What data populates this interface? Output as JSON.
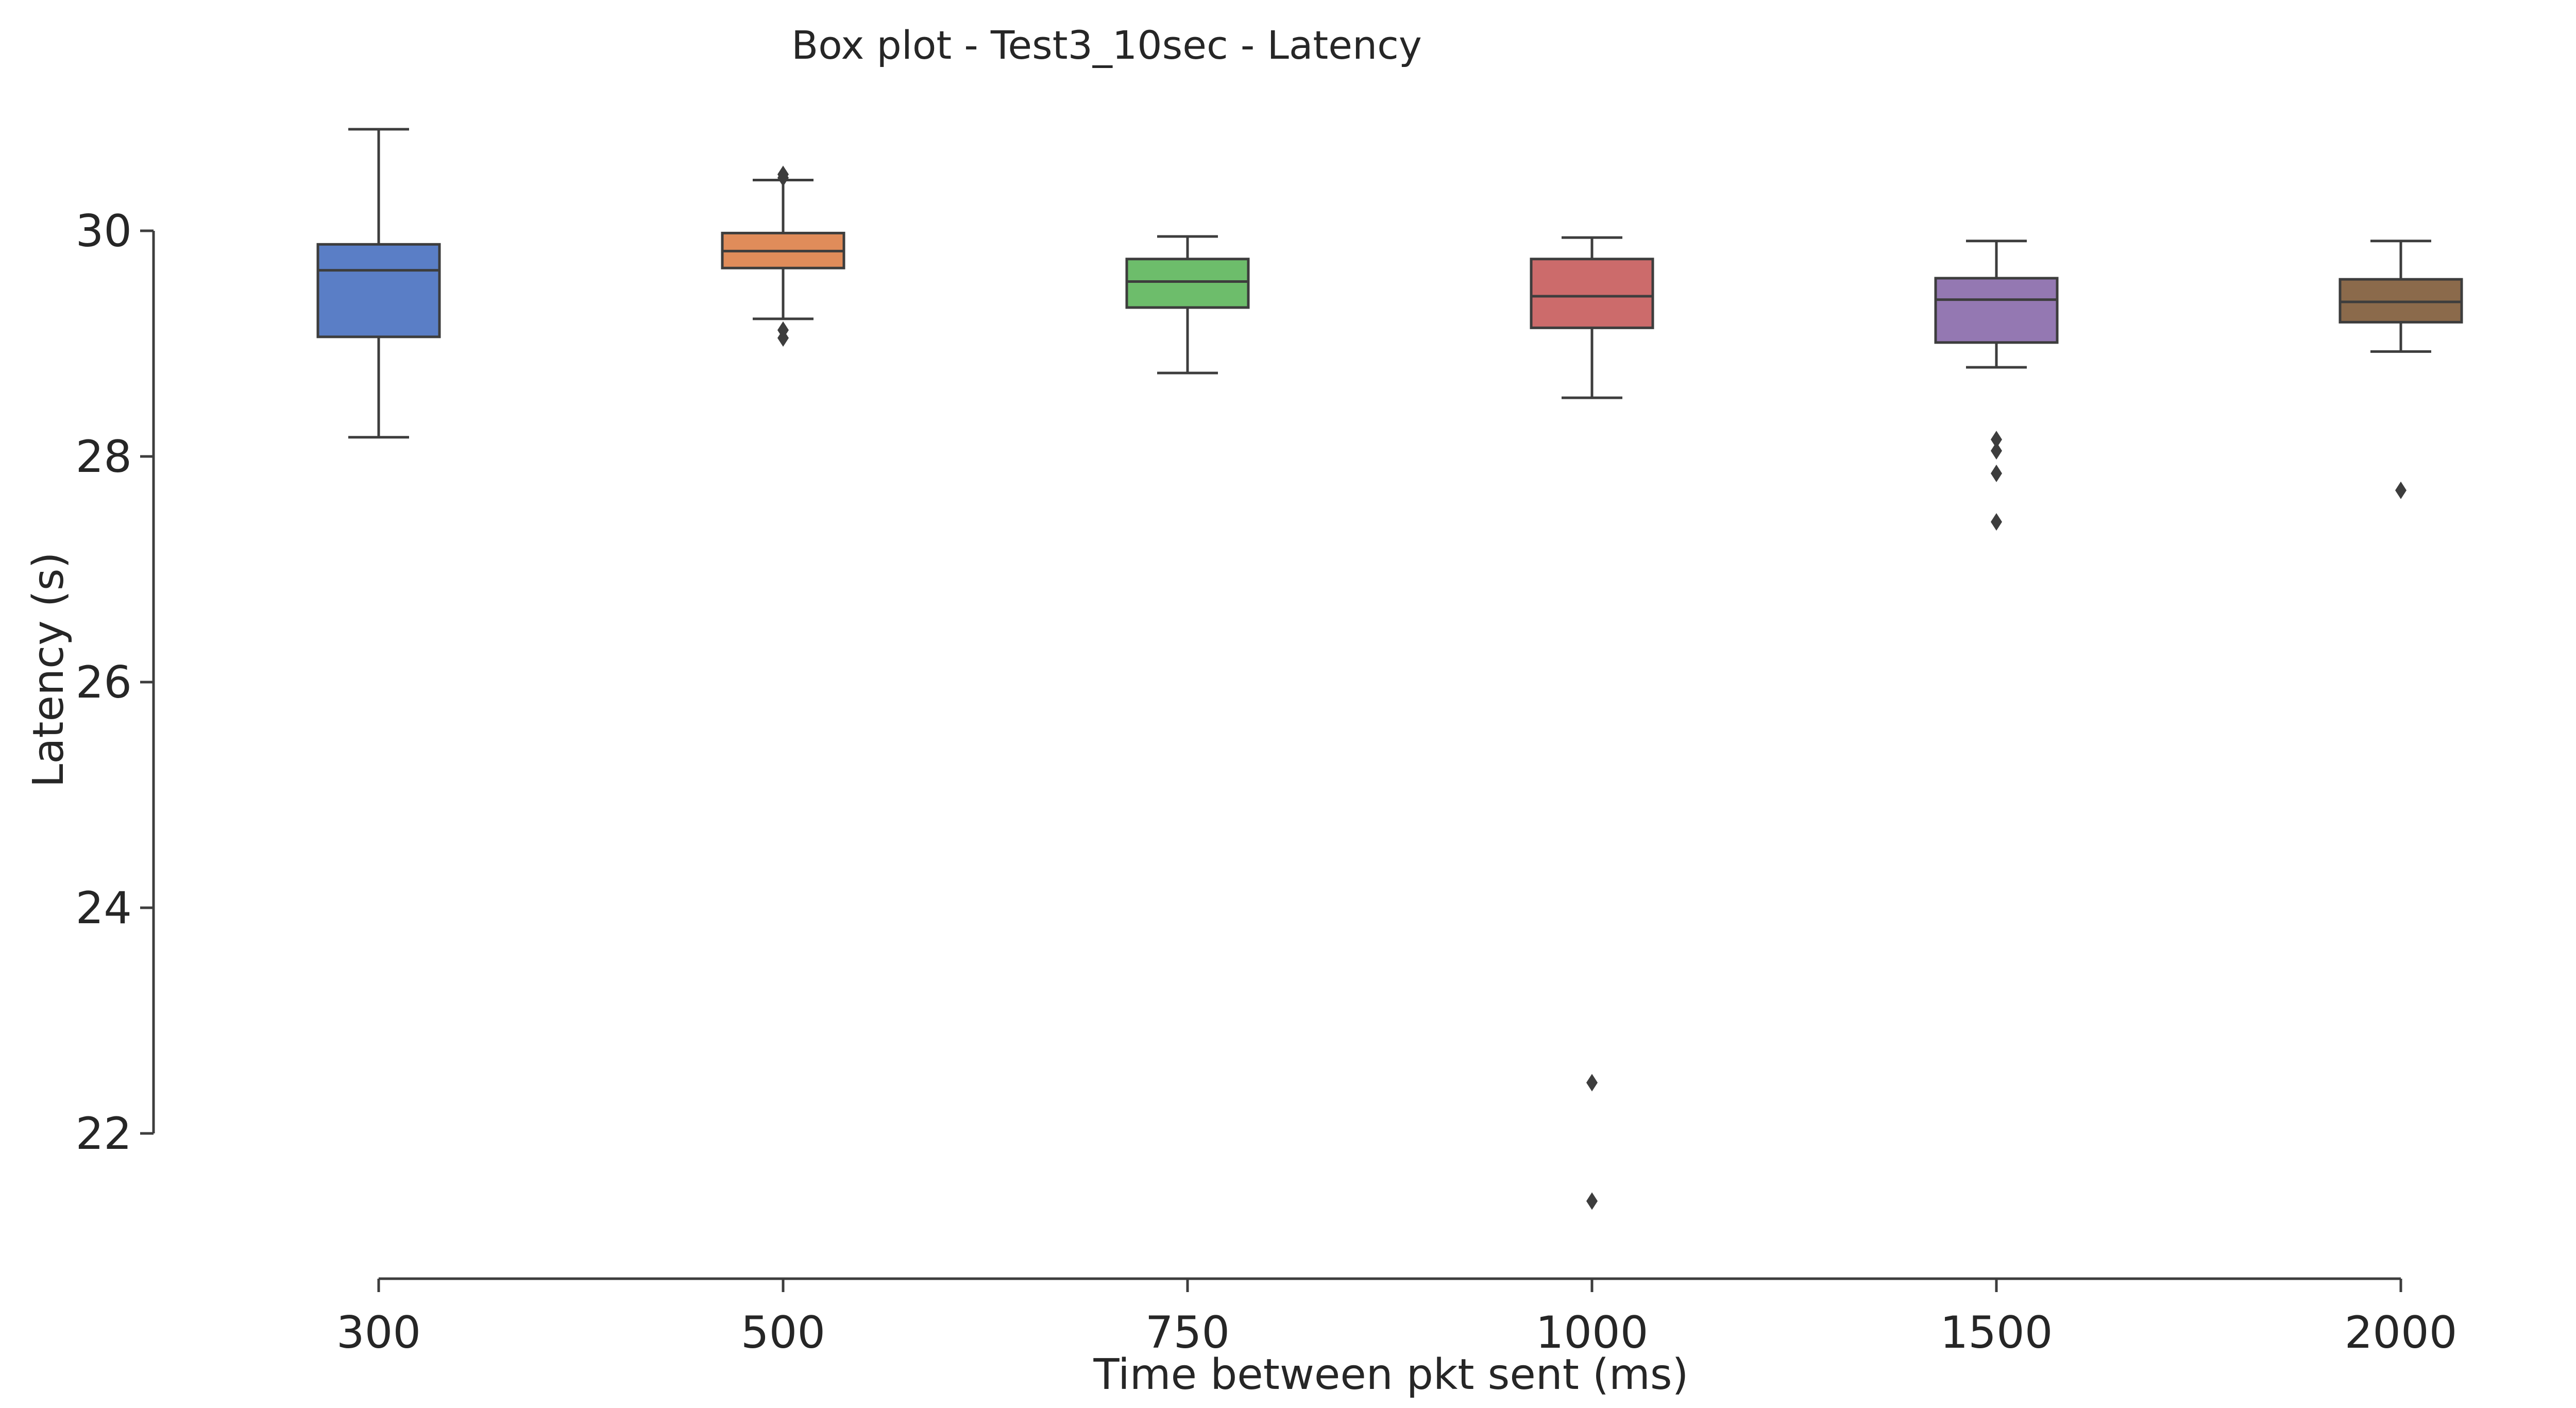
{
  "chart_data": {
    "type": "box",
    "title": "Box plot - Test3_10sec - Latency",
    "xlabel": "Time between pkt sent (ms)",
    "ylabel": "Latency (s)",
    "ylim": [
      20.75,
      31.85
    ],
    "yticks": [
      22,
      24,
      26,
      28,
      30
    ],
    "grid": false,
    "legend": "none",
    "categories": [
      "300",
      "500",
      "750",
      "1000",
      "1500",
      "2000"
    ],
    "boxes": [
      {
        "category": "300",
        "whisker_low": 28.17,
        "q1": 29.06,
        "median": 29.65,
        "q3": 29.88,
        "whisker_high": 30.9,
        "outliers": [],
        "color": "#5a7ec6"
      },
      {
        "category": "500",
        "whisker_low": 29.22,
        "q1": 29.67,
        "median": 29.82,
        "q3": 29.98,
        "whisker_high": 30.45,
        "outliers": [
          29.05,
          29.12,
          30.47,
          30.5
        ],
        "color": "#e08c5a"
      },
      {
        "category": "750",
        "whisker_low": 28.74,
        "q1": 29.32,
        "median": 29.55,
        "q3": 29.75,
        "whisker_high": 29.95,
        "outliers": [],
        "color": "#6dbd6b"
      },
      {
        "category": "1000",
        "whisker_low": 28.52,
        "q1": 29.14,
        "median": 29.42,
        "q3": 29.75,
        "whisker_high": 29.94,
        "outliers": [
          22.45,
          21.4
        ],
        "color": "#cc6b6b"
      },
      {
        "category": "1500",
        "whisker_low": 28.79,
        "q1": 29.01,
        "median": 29.39,
        "q3": 29.58,
        "whisker_high": 29.91,
        "outliers": [
          28.15,
          28.05,
          27.85,
          27.42
        ],
        "color": "#9478b2"
      },
      {
        "category": "2000",
        "whisker_low": 28.93,
        "q1": 29.19,
        "median": 29.37,
        "q3": 29.57,
        "whisker_high": 29.91,
        "outliers": [
          27.7
        ],
        "color": "#8b6a4b"
      }
    ]
  }
}
